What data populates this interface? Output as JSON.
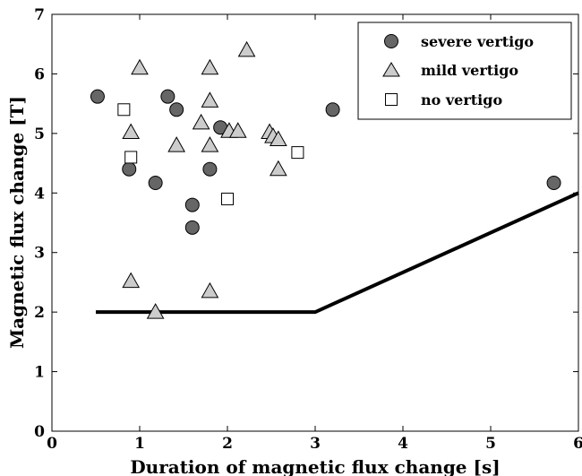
{
  "chart_data": {
    "type": "scatter",
    "xlabel": "Duration of magnetic flux change [s]",
    "ylabel": "Magnetic flux change [T]",
    "xlim": [
      0,
      6
    ],
    "ylim": [
      0,
      7
    ],
    "xticks": [
      "0",
      "1",
      "2",
      "3",
      "4",
      "5",
      "6"
    ],
    "yticks": [
      "0",
      "1",
      "2",
      "3",
      "4",
      "5",
      "6",
      "7"
    ],
    "grid": false,
    "legend_position": "top-right",
    "series": [
      {
        "name": "severe vertigo",
        "marker": "circle",
        "fill": "#666666",
        "points": [
          [
            0.52,
            5.62
          ],
          [
            0.88,
            4.4
          ],
          [
            1.18,
            4.17
          ],
          [
            1.32,
            5.62
          ],
          [
            1.42,
            5.4
          ],
          [
            1.6,
            3.8
          ],
          [
            1.6,
            3.42
          ],
          [
            1.8,
            4.4
          ],
          [
            1.92,
            5.1
          ],
          [
            3.2,
            5.4
          ],
          [
            5.72,
            4.17
          ]
        ]
      },
      {
        "name": "mild vertigo",
        "marker": "triangle",
        "fill": "#cccccc",
        "points": [
          [
            1.0,
            6.1
          ],
          [
            1.8,
            6.1
          ],
          [
            2.22,
            6.4
          ],
          [
            0.9,
            5.02
          ],
          [
            1.8,
            5.55
          ],
          [
            1.7,
            5.18
          ],
          [
            1.42,
            4.8
          ],
          [
            1.8,
            4.8
          ],
          [
            2.02,
            5.04
          ],
          [
            2.12,
            5.04
          ],
          [
            2.48,
            5.02
          ],
          [
            2.52,
            4.95
          ],
          [
            2.58,
            4.9
          ],
          [
            2.58,
            4.4
          ],
          [
            0.9,
            2.52
          ],
          [
            1.8,
            2.35
          ],
          [
            1.18,
            2.0
          ]
        ]
      },
      {
        "name": "no vertigo",
        "marker": "square",
        "fill": "#ffffff",
        "points": [
          [
            0.82,
            5.4
          ],
          [
            0.9,
            4.6
          ],
          [
            2.8,
            4.68
          ],
          [
            2.0,
            3.9
          ]
        ]
      }
    ],
    "threshold_line": {
      "points": [
        [
          0.5,
          2.0
        ],
        [
          3.0,
          2.0
        ],
        [
          6.0,
          4.0
        ]
      ]
    }
  }
}
